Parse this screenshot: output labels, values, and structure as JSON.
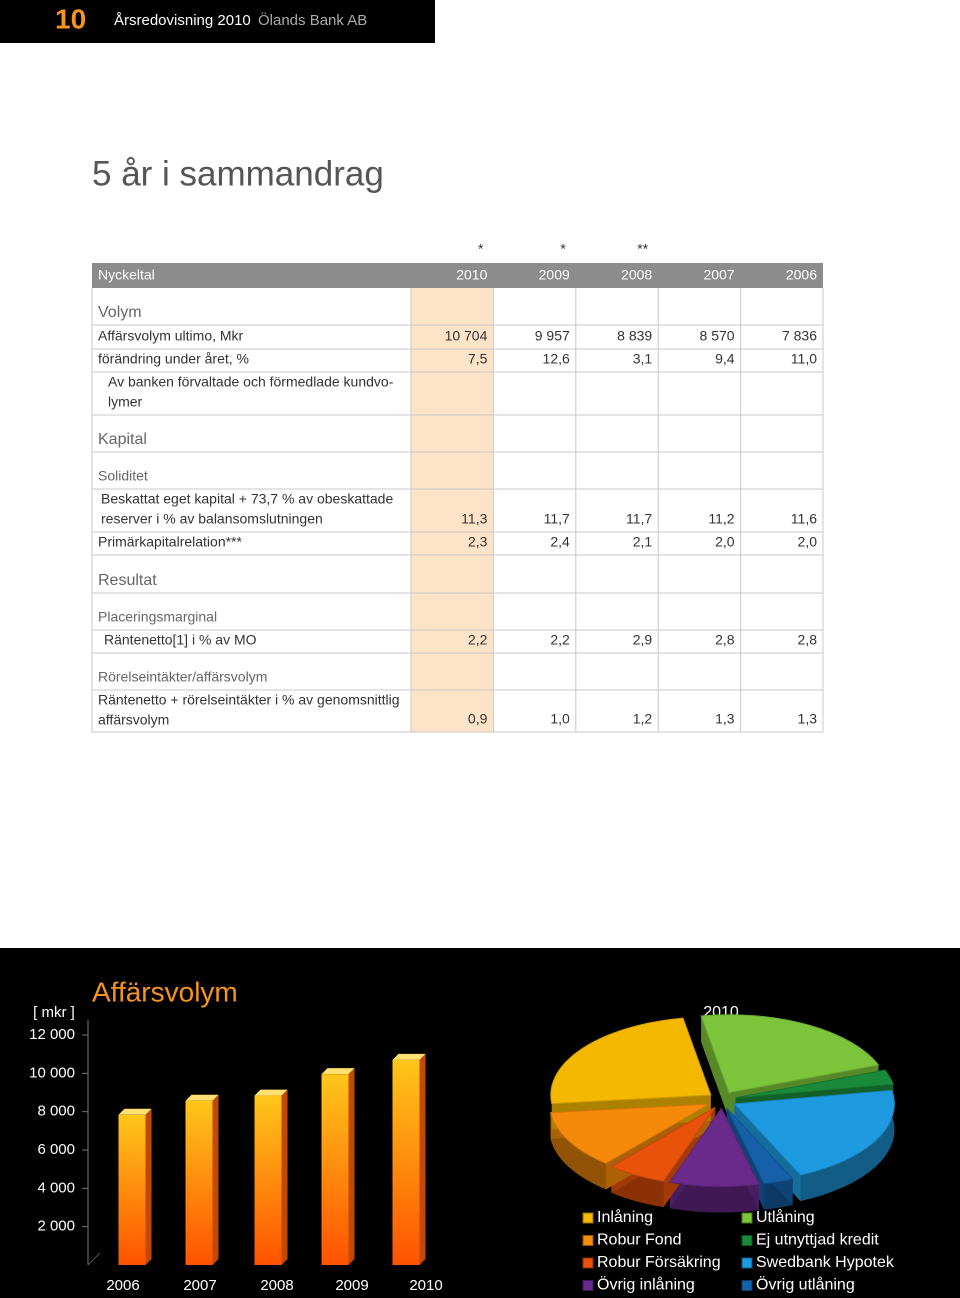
{
  "header": {
    "page_number": "10",
    "publication": "Årsredovisning 2010",
    "company": "Ölands Bank AB"
  },
  "title": "5 år i sammandrag",
  "table": {
    "notes": [
      "*",
      "*",
      "**"
    ],
    "columns": [
      "Nyckeltal",
      "2010",
      "2009",
      "2008",
      "2007",
      "2006"
    ],
    "rows": [
      {
        "label": "Volym"
      },
      {
        "label": "Affärsvolym ultimo, Mkr",
        "values": [
          "10 704",
          "9 957",
          "8 839",
          "8 570",
          "7 836"
        ]
      },
      {
        "label": "förändring under året, %",
        "values": [
          "7,5",
          "12,6",
          "3,1",
          "9,4",
          "11,0"
        ]
      },
      {
        "label": [
          "Av banken förvaltade och förmedlade kundvo-",
          "lymer"
        ]
      },
      {
        "label": "Kapital"
      },
      {
        "label": "Soliditet"
      },
      {
        "label": [
          "Beskattat eget kapital + 73,7 % av obeskattade",
          "reserver i % av balansomslutningen"
        ],
        "values": [
          "11,3",
          "11,7",
          "11,7",
          "11,2",
          "11,6"
        ]
      },
      {
        "label": "Primärkapitalrelation***",
        "values": [
          "2,3",
          "2,4",
          "2,1",
          "2,0",
          "2,0"
        ]
      },
      {
        "label": "Resultat"
      },
      {
        "label": "Placeringsmarginal"
      },
      {
        "label": "Räntenetto[1] i % av MO",
        "values": [
          "2,2",
          "2,2",
          "2,9",
          "2,8",
          "2,8"
        ]
      },
      {
        "label": "Rörelseintäkter/affärsvolym"
      },
      {
        "label": [
          "Räntenetto + rörelseintäkter i % av genomsnittlig",
          "affärsvolym"
        ],
        "values": [
          "0,9",
          "1,0",
          "1,2",
          "1,3",
          "1,3"
        ]
      }
    ]
  },
  "chart_data": [
    {
      "type": "bar",
      "title": "Affärsvolym",
      "y_label": "[ mkr ]",
      "categories": [
        "2006",
        "2007",
        "2008",
        "2009",
        "2010"
      ],
      "values": [
        7836,
        8570,
        8839,
        9957,
        10704
      ],
      "ylim": [
        0,
        12000
      ],
      "yticks": [
        {
          "value": 2000,
          "label": "2 000"
        },
        {
          "value": 4000,
          "label": "4 000"
        },
        {
          "value": 6000,
          "label": "6 000"
        },
        {
          "value": 8000,
          "label": "8 000"
        },
        {
          "value": 10000,
          "label": "10 000"
        },
        {
          "value": 12000,
          "label": "12 000"
        }
      ]
    },
    {
      "type": "pie",
      "title": "2010",
      "categories": [
        "Inlåning",
        "Robur Fond",
        "Robur Försäkring",
        "Övrig inlåning",
        "Utlåning",
        "Ej utnyttjad kredit",
        "Swedbank Hypotek",
        "Övrig utlåning"
      ],
      "values": [
        24,
        12,
        6,
        9,
        22,
        3,
        21,
        3
      ],
      "colors": [
        "#f5b800",
        "#f58a0a",
        "#e8520a",
        "#6a2a8c",
        "#7cc43a",
        "#1a8a3a",
        "#1e9be0",
        "#1560a8"
      ]
    }
  ]
}
